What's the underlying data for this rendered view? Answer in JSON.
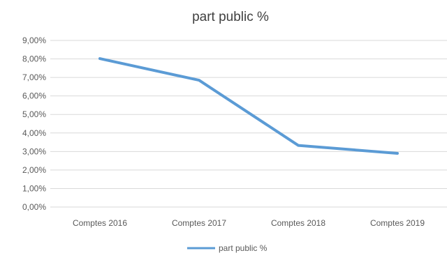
{
  "chart_data": {
    "type": "line",
    "title": "part public %",
    "xlabel": "",
    "ylabel": "",
    "categories": [
      "Comptes 2016",
      "Comptes 2017",
      "Comptes 2018",
      "Comptes 2019"
    ],
    "series": [
      {
        "name": "part public %",
        "values": [
          0.0802,
          0.0685,
          0.0333,
          0.029
        ]
      }
    ],
    "ylim": [
      0,
      0.09
    ],
    "yticks": [
      0,
      0.01,
      0.02,
      0.03,
      0.04,
      0.05,
      0.06,
      0.07,
      0.08,
      0.09
    ],
    "ytick_labels": [
      "0,00%",
      "1,00%",
      "2,00%",
      "3,00%",
      "4,00%",
      "5,00%",
      "6,00%",
      "7,00%",
      "8,00%",
      "9,00%"
    ],
    "grid": true,
    "legend": "bottom",
    "line_color": "#5b9bd5"
  }
}
